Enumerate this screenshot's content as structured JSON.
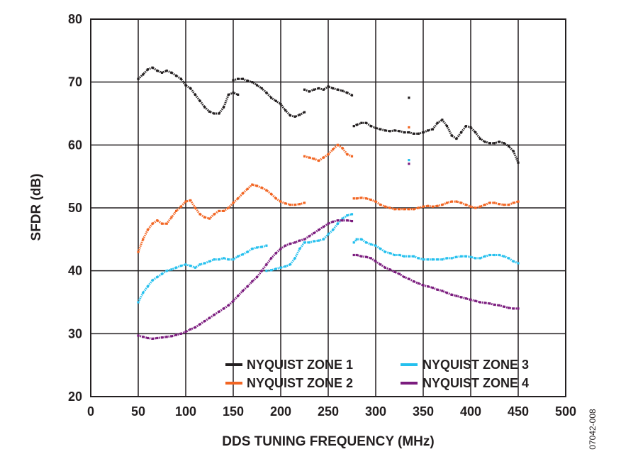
{
  "figure_id": "07042-008",
  "chart_data": {
    "type": "scatter",
    "title": "",
    "xlabel": "DDS TUNING FREQUENCY (MHz)",
    "ylabel": "SFDR (dB)",
    "xlim": [
      0,
      500
    ],
    "ylim": [
      20,
      80
    ],
    "xticks": [
      0,
      50,
      100,
      150,
      200,
      250,
      300,
      350,
      400,
      450,
      500
    ],
    "yticks": [
      20,
      30,
      40,
      50,
      60,
      70,
      80
    ],
    "grid": true,
    "legend_position": "bottom-right",
    "series": [
      {
        "name": "NYQUIST ZONE 1",
        "color": "#231f20",
        "segments": [
          {
            "x": [
              50,
              55,
              60,
              65,
              70,
              75,
              80,
              85,
              90,
              95,
              100,
              105,
              110,
              115,
              120,
              125,
              130,
              135,
              140,
              145,
              150,
              155
            ],
            "y": [
              70.5,
              71.2,
              72,
              72.3,
              71.8,
              71.5,
              71.8,
              71.5,
              71,
              70.5,
              69.5,
              69,
              68,
              67,
              66,
              65.3,
              65,
              65,
              66,
              68,
              68.3,
              68
            ]
          },
          {
            "x": [
              150,
              155,
              160,
              165,
              170,
              175,
              180,
              185,
              190,
              195,
              200,
              205,
              210,
              215,
              220,
              225
            ],
            "y": [
              70.3,
              70.5,
              70.5,
              70.2,
              70,
              69.5,
              69,
              68.3,
              67.5,
              67,
              66.5,
              65.5,
              64.7,
              64.5,
              64.8,
              65.2
            ]
          },
          {
            "x": [
              225,
              230,
              235,
              240,
              245,
              250,
              255,
              260,
              265,
              270,
              275
            ],
            "y": [
              68.8,
              68.5,
              68.8,
              69,
              68.8,
              69.3,
              69,
              68.8,
              68.6,
              68.3,
              67.9
            ]
          },
          {
            "x": [
              277,
              280,
              285,
              290,
              295,
              300,
              305,
              310,
              315,
              320,
              325,
              330,
              335,
              340,
              345,
              350,
              355,
              360,
              365,
              370,
              375,
              380,
              385,
              390,
              395,
              400,
              405,
              410,
              415,
              420,
              425,
              430,
              435,
              440,
              445,
              450
            ],
            "y": [
              63,
              63.2,
              63.5,
              63.5,
              63,
              62.7,
              62.5,
              62.3,
              62.2,
              62.3,
              62.2,
              62,
              62,
              61.8,
              61.8,
              62,
              62.3,
              62.5,
              63.5,
              64,
              63,
              61.5,
              61,
              62,
              63,
              62.8,
              62,
              61,
              60.5,
              60.3,
              60.3,
              60.5,
              60.3,
              59.8,
              59,
              57.2
            ]
          },
          {
            "x": [
              335
            ],
            "y": [
              67.5
            ]
          }
        ]
      },
      {
        "name": "NYQUIST ZONE 2",
        "color": "#f26522",
        "segments": [
          {
            "x": [
              50,
              55,
              60,
              65,
              70,
              75,
              80,
              85,
              90,
              95,
              100,
              105,
              110,
              115,
              120,
              125,
              130,
              135,
              140,
              145,
              150,
              155,
              160,
              165,
              170,
              175,
              180,
              185,
              190,
              195,
              200,
              205,
              210,
              215,
              220,
              225
            ],
            "y": [
              43,
              45,
              46.5,
              47.5,
              48,
              47.5,
              47.5,
              48.5,
              49.5,
              50.2,
              51,
              51.2,
              50,
              49,
              48.5,
              48.3,
              49,
              49.5,
              49.5,
              50,
              50.8,
              51.5,
              52.3,
              53,
              53.7,
              53.5,
              53.2,
              52.8,
              52.2,
              51.5,
              51,
              50.7,
              50.5,
              50.5,
              50.6,
              50.8
            ]
          },
          {
            "x": [
              225,
              230,
              235,
              240,
              245,
              250,
              255,
              260,
              265,
              270,
              275
            ],
            "y": [
              58.2,
              58,
              57.8,
              57.5,
              58,
              58.5,
              59.3,
              60,
              59.5,
              58.5,
              58.2
            ]
          },
          {
            "x": [
              277,
              280,
              285,
              290,
              295,
              300,
              305,
              310,
              315,
              320,
              325,
              330,
              335,
              340,
              345,
              350,
              355,
              360,
              365,
              370,
              375,
              380,
              385,
              390,
              395,
              400,
              405,
              410,
              415,
              420,
              425,
              430,
              435,
              440,
              445,
              450
            ],
            "y": [
              51.5,
              51.5,
              51.6,
              51.5,
              51.3,
              51,
              50.5,
              50.2,
              50,
              49.8,
              49.8,
              49.8,
              49.8,
              49.8,
              50,
              50.2,
              50.3,
              50.2,
              50.3,
              50.5,
              50.8,
              51,
              51,
              50.8,
              50.5,
              50.2,
              50,
              50.2,
              50.5,
              50.8,
              50.8,
              50.6,
              50.5,
              50.5,
              50.8,
              51
            ]
          },
          {
            "x": [
              335
            ],
            "y": [
              62.8
            ]
          }
        ]
      },
      {
        "name": "NYQUIST ZONE 3",
        "color": "#25c0ee",
        "segments": [
          {
            "x": [
              50,
              55,
              60,
              65,
              70,
              75,
              80,
              85,
              90,
              95,
              100,
              105,
              110,
              115,
              120,
              125,
              130,
              135,
              140,
              145,
              150,
              155,
              160,
              165,
              170,
              175,
              180,
              185
            ],
            "y": [
              35,
              36.5,
              37.5,
              38.5,
              39,
              39.5,
              40,
              40.2,
              40.5,
              40.8,
              41,
              40.8,
              40.5,
              41,
              41.2,
              41.5,
              41.8,
              41.8,
              42,
              41.8,
              41.8,
              42.3,
              42.6,
              43,
              43.5,
              43.7,
              43.8,
              44
            ]
          },
          {
            "x": [
              185,
              190,
              195,
              200,
              205,
              210,
              215,
              220,
              225,
              230,
              235,
              240,
              245,
              250,
              255,
              260,
              265,
              270,
              275
            ],
            "y": [
              40,
              40.1,
              40.3,
              40.5,
              40.7,
              41,
              42,
              43.5,
              44.5,
              44.5,
              44.7,
              44.8,
              45,
              45.8,
              46.5,
              47.5,
              48.3,
              48.8,
              49
            ]
          },
          {
            "x": [
              277,
              280,
              285,
              290,
              295,
              300,
              305,
              310,
              315,
              320,
              325,
              330,
              335,
              340,
              345,
              350,
              355,
              360,
              365,
              370,
              375,
              380,
              385,
              390,
              395,
              400,
              405,
              410,
              415,
              420,
              425,
              430,
              435,
              440,
              445,
              450
            ],
            "y": [
              44.5,
              45,
              45,
              44.5,
              44.2,
              44,
              43.5,
              43,
              42.8,
              42.5,
              42.5,
              42.3,
              42.3,
              42.3,
              42,
              41.8,
              41.8,
              41.8,
              41.8,
              41.8,
              42,
              42,
              42.2,
              42.3,
              42.3,
              42.2,
              42,
              42,
              42.3,
              42.5,
              42.5,
              42.5,
              42.3,
              42,
              41.5,
              41.2
            ]
          },
          {
            "x": [
              335
            ],
            "y": [
              57.6
            ]
          }
        ]
      },
      {
        "name": "NYQUIST ZONE 4",
        "color": "#7b1c7e",
        "segments": [
          {
            "x": [
              50,
              55,
              60,
              65,
              70,
              75,
              80,
              85,
              90,
              95,
              100,
              105,
              110,
              115,
              120,
              125,
              130,
              135,
              140,
              145,
              150,
              155,
              160,
              165,
              170,
              175,
              180,
              185,
              190,
              195,
              200,
              205,
              210,
              215,
              220,
              225,
              230,
              235,
              240,
              245,
              250,
              255,
              260,
              265,
              270,
              275
            ],
            "y": [
              29.7,
              29.5,
              29.3,
              29.2,
              29.3,
              29.4,
              29.5,
              29.6,
              29.8,
              30,
              30.3,
              30.7,
              31,
              31.5,
              32,
              32.5,
              33,
              33.5,
              34,
              34.5,
              35.2,
              36,
              36.8,
              37.5,
              38.3,
              39,
              40,
              41,
              42,
              42.8,
              43.5,
              44,
              44.3,
              44.5,
              44.8,
              45,
              45.5,
              46,
              46.5,
              47,
              47.5,
              47.8,
              48,
              48,
              48,
              47.9
            ]
          },
          {
            "x": [
              277,
              280,
              285,
              290,
              295,
              300,
              305,
              310,
              315,
              320,
              325,
              330,
              335,
              340,
              345,
              350,
              355,
              360,
              365,
              370,
              375,
              380,
              385,
              390,
              395,
              400,
              405,
              410,
              415,
              420,
              425,
              430,
              435,
              440,
              445,
              450
            ],
            "y": [
              42.5,
              42.5,
              42.3,
              42.2,
              42,
              41.5,
              41,
              40.5,
              40.2,
              39.8,
              39.5,
              39,
              38.7,
              38.3,
              38,
              37.7,
              37.5,
              37.3,
              37,
              36.8,
              36.5,
              36.2,
              36,
              35.8,
              35.6,
              35.4,
              35.2,
              35,
              34.9,
              34.8,
              34.6,
              34.5,
              34.3,
              34.1,
              34,
              34
            ]
          },
          {
            "x": [
              335
            ],
            "y": [
              57
            ]
          }
        ]
      }
    ]
  }
}
